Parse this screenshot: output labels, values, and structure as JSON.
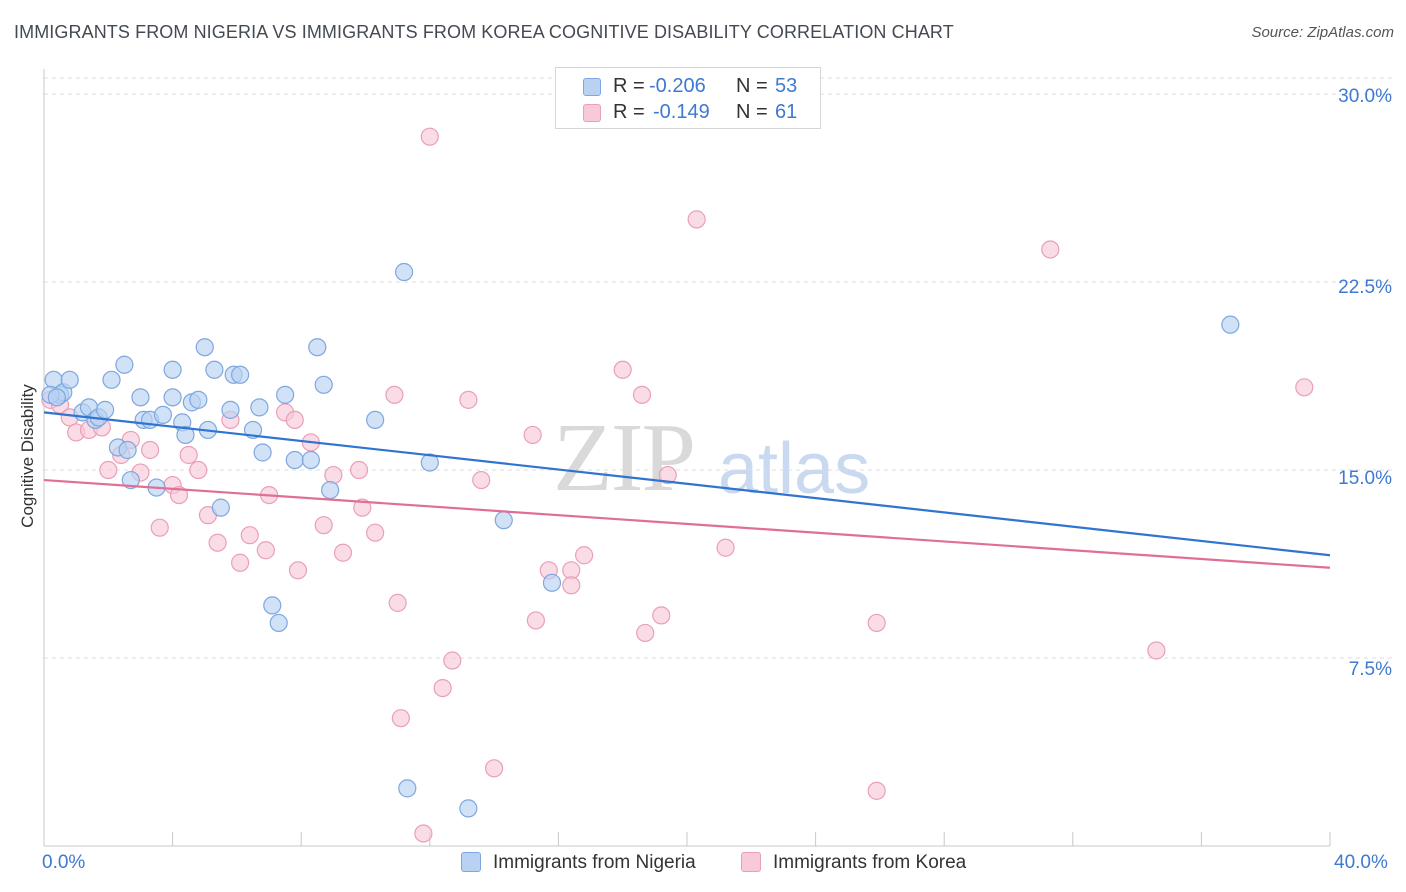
{
  "title": "IMMIGRANTS FROM NIGERIA VS IMMIGRANTS FROM KOREA COGNITIVE DISABILITY CORRELATION CHART",
  "source": "Source: ZipAtlas.com",
  "watermark": {
    "zip": "ZIP",
    "atlas": "atlas"
  },
  "legend": {
    "nigeria": {
      "r_label": "R =",
      "r_value": "-0.206",
      "n_label": "N =",
      "n_value": "53"
    },
    "korea": {
      "r_label": "R =",
      "r_value": "-0.149",
      "n_label": "N =",
      "n_value": "61"
    }
  },
  "colors": {
    "nigeria_fill": "#b9d2f3",
    "nigeria_stroke": "#7ea7df",
    "nigeria_line": "#2f74d0",
    "korea_fill": "#f8c9d8",
    "korea_stroke": "#ea9fb8",
    "korea_line": "#e06f96",
    "grid": "#dddddd",
    "axis_text": "#3f79d0"
  },
  "chart_data": {
    "type": "scatter",
    "title": "IMMIGRANTS FROM NIGERIA VS IMMIGRANTS FROM KOREA COGNITIVE DISABILITY CORRELATION CHART",
    "xlabel": "",
    "ylabel": "Cognitive Disability",
    "xlim": [
      0,
      40
    ],
    "ylim": [
      0,
      31
    ],
    "x_tick_labels": [
      "0.0%",
      "40.0%"
    ],
    "y_ticks": [
      7.5,
      15.0,
      22.5,
      30.0
    ],
    "y_tick_labels": [
      "7.5%",
      "15.0%",
      "22.5%",
      "30.0%"
    ],
    "grid": true,
    "legend_position": "top-center",
    "series": [
      {
        "name": "Immigrants from Nigeria",
        "trend": {
          "x": [
            0,
            40
          ],
          "y": [
            17.3,
            11.6
          ]
        },
        "points": [
          [
            0.3,
            18.6
          ],
          [
            0.5,
            18.0
          ],
          [
            0.6,
            18.1
          ],
          [
            0.8,
            18.6
          ],
          [
            1.2,
            17.3
          ],
          [
            1.4,
            17.5
          ],
          [
            1.6,
            17.0
          ],
          [
            1.7,
            17.1
          ],
          [
            1.9,
            17.4
          ],
          [
            2.1,
            18.6
          ],
          [
            2.3,
            15.9
          ],
          [
            2.5,
            19.2
          ],
          [
            2.6,
            15.8
          ],
          [
            2.7,
            14.6
          ],
          [
            3.0,
            17.9
          ],
          [
            3.1,
            17.0
          ],
          [
            3.3,
            17.0
          ],
          [
            3.5,
            14.3
          ],
          [
            3.7,
            17.2
          ],
          [
            4.0,
            19.0
          ],
          [
            4.0,
            17.9
          ],
          [
            4.3,
            16.9
          ],
          [
            4.4,
            16.4
          ],
          [
            4.6,
            17.7
          ],
          [
            4.8,
            17.8
          ],
          [
            5.0,
            19.9
          ],
          [
            5.1,
            16.6
          ],
          [
            5.3,
            19.0
          ],
          [
            5.5,
            13.5
          ],
          [
            5.8,
            17.4
          ],
          [
            5.9,
            18.8
          ],
          [
            6.1,
            18.8
          ],
          [
            6.5,
            16.6
          ],
          [
            6.7,
            17.5
          ],
          [
            6.8,
            15.7
          ],
          [
            7.1,
            9.6
          ],
          [
            7.3,
            8.9
          ],
          [
            7.5,
            18.0
          ],
          [
            7.8,
            15.4
          ],
          [
            8.3,
            15.4
          ],
          [
            8.5,
            19.9
          ],
          [
            8.7,
            18.4
          ],
          [
            8.9,
            14.2
          ],
          [
            10.3,
            17.0
          ],
          [
            11.2,
            22.9
          ],
          [
            11.3,
            2.3
          ],
          [
            12.0,
            15.3
          ],
          [
            13.2,
            1.5
          ],
          [
            14.3,
            13.0
          ],
          [
            15.8,
            10.5
          ],
          [
            36.9,
            20.8
          ],
          [
            0.2,
            18.0
          ],
          [
            0.4,
            17.9
          ]
        ]
      },
      {
        "name": "Immigrants from Korea",
        "trend": {
          "x": [
            0,
            40
          ],
          "y": [
            14.6,
            11.1
          ]
        },
        "points": [
          [
            0.2,
            17.8
          ],
          [
            0.5,
            17.6
          ],
          [
            0.8,
            17.1
          ],
          [
            1.0,
            16.5
          ],
          [
            1.4,
            16.6
          ],
          [
            1.8,
            16.7
          ],
          [
            2.0,
            15.0
          ],
          [
            2.4,
            15.6
          ],
          [
            2.7,
            16.2
          ],
          [
            3.0,
            14.9
          ],
          [
            3.3,
            15.8
          ],
          [
            3.6,
            12.7
          ],
          [
            4.0,
            14.4
          ],
          [
            4.2,
            14.0
          ],
          [
            4.5,
            15.6
          ],
          [
            4.8,
            15.0
          ],
          [
            5.1,
            13.2
          ],
          [
            5.4,
            12.1
          ],
          [
            5.8,
            17.0
          ],
          [
            6.1,
            11.3
          ],
          [
            6.4,
            12.4
          ],
          [
            6.9,
            11.8
          ],
          [
            7.0,
            14.0
          ],
          [
            7.5,
            17.3
          ],
          [
            7.8,
            17.0
          ],
          [
            7.9,
            11.0
          ],
          [
            8.3,
            16.1
          ],
          [
            8.7,
            12.8
          ],
          [
            9.0,
            14.8
          ],
          [
            9.3,
            11.7
          ],
          [
            9.8,
            15.0
          ],
          [
            9.9,
            13.5
          ],
          [
            10.3,
            12.5
          ],
          [
            10.9,
            18.0
          ],
          [
            11.0,
            9.7
          ],
          [
            11.1,
            5.1
          ],
          [
            11.8,
            0.5
          ],
          [
            12.4,
            6.3
          ],
          [
            12.7,
            7.4
          ],
          [
            12.0,
            28.3
          ],
          [
            13.2,
            17.8
          ],
          [
            13.6,
            14.6
          ],
          [
            14.0,
            3.1
          ],
          [
            15.2,
            16.4
          ],
          [
            15.3,
            9.0
          ],
          [
            15.7,
            11.0
          ],
          [
            16.4,
            11.0
          ],
          [
            16.4,
            10.4
          ],
          [
            16.8,
            11.6
          ],
          [
            18.0,
            19.0
          ],
          [
            18.6,
            18.0
          ],
          [
            18.7,
            8.5
          ],
          [
            19.2,
            9.2
          ],
          [
            19.4,
            14.8
          ],
          [
            20.3,
            25.0
          ],
          [
            21.2,
            11.9
          ],
          [
            25.9,
            8.9
          ],
          [
            25.9,
            2.2
          ],
          [
            31.3,
            23.8
          ],
          [
            34.6,
            7.8
          ],
          [
            39.2,
            18.3
          ]
        ]
      }
    ]
  },
  "bottom_legend": {
    "nigeria": "Immigrants from Nigeria",
    "korea": "Immigrants from Korea"
  }
}
